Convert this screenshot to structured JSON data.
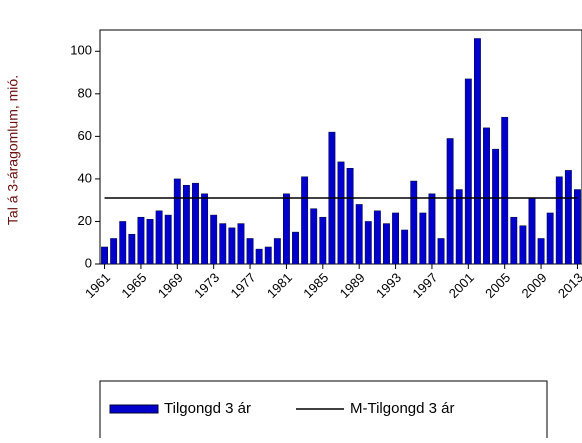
{
  "chart_data": {
    "type": "bar",
    "y_label": "Tal á 3-áragomlum, mió.",
    "x": [
      1961,
      1962,
      1963,
      1964,
      1965,
      1966,
      1967,
      1968,
      1969,
      1970,
      1971,
      1972,
      1973,
      1974,
      1975,
      1976,
      1977,
      1978,
      1979,
      1980,
      1981,
      1982,
      1983,
      1984,
      1985,
      1986,
      1987,
      1988,
      1989,
      1990,
      1991,
      1992,
      1993,
      1994,
      1995,
      1996,
      1997,
      1998,
      1999,
      2000,
      2001,
      2002,
      2003,
      2004,
      2005,
      2006,
      2007,
      2008,
      2009,
      2010,
      2011,
      2012,
      2013
    ],
    "series": [
      {
        "name": "Tilgongd 3 ár",
        "type": "bar",
        "color": "#0000cc",
        "values": [
          8,
          12,
          20,
          14,
          22,
          21,
          25,
          23,
          40,
          37,
          38,
          33,
          23,
          19,
          17,
          19,
          12,
          7,
          8,
          12,
          33,
          15,
          41,
          26,
          22,
          62,
          48,
          45,
          28,
          20,
          25,
          19,
          24,
          16,
          39,
          24,
          33,
          12,
          59,
          35,
          87,
          106,
          64,
          54,
          69,
          22,
          18,
          31,
          12,
          24,
          41,
          44,
          35
        ]
      },
      {
        "name": "M-Tilgongd 3 ár",
        "type": "line",
        "color": "#000000",
        "values": [
          31,
          31,
          31,
          31,
          31,
          31,
          31,
          31,
          31,
          31,
          31,
          31,
          31,
          31,
          31,
          31,
          31,
          31,
          31,
          31,
          31,
          31,
          31,
          31,
          31,
          31,
          31,
          31,
          31,
          31,
          31,
          31,
          31,
          31,
          31,
          31,
          31,
          31,
          31,
          31,
          31,
          31,
          31,
          31,
          31,
          31,
          31,
          31,
          31,
          31,
          31,
          31,
          31
        ]
      }
    ],
    "xlim": [
      1960.5,
      2013.5
    ],
    "xticks": [
      1961,
      1965,
      1969,
      1973,
      1977,
      1981,
      1985,
      1989,
      1993,
      1997,
      2001,
      2005,
      2009,
      2013
    ],
    "ylim": [
      0,
      110
    ],
    "yticks": [
      0,
      20,
      40,
      60,
      80,
      100
    ],
    "legend": "bottom"
  }
}
